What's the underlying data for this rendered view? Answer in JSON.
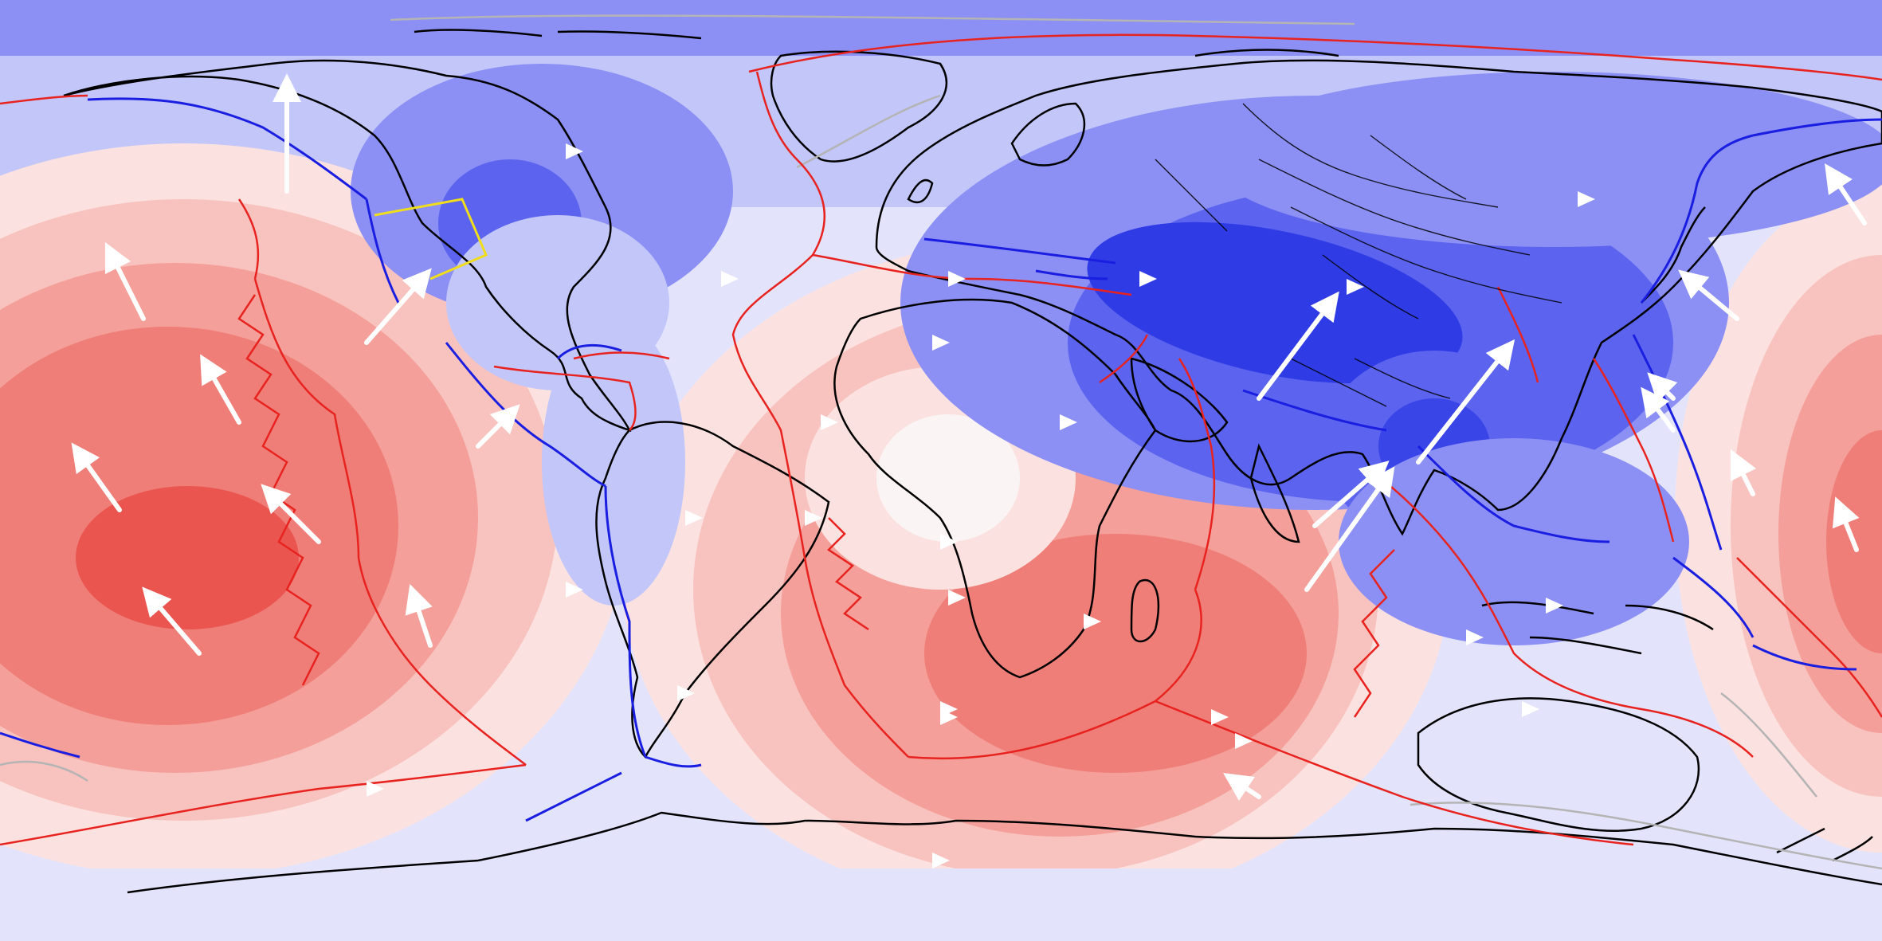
{
  "map": {
    "projection": "equirectangular",
    "colors": {
      "blue_dark": "#2f3ce6",
      "blue_mid": "#5b63ef",
      "blue_light": "#8c90f4",
      "blue_pale": "#c3c6f9",
      "blue_faint": "#e3e4fb",
      "white": "#fbf4f4",
      "red_faint": "#fbe2e0",
      "red_pale": "#f8c3bf",
      "red_light": "#f49f99",
      "red_mid": "#ef7e78",
      "red_dark": "#ea5550",
      "plate_boundary": "#e8231f",
      "subduction": "#1a1ee0",
      "coastline": "#000000",
      "arrow": "#ffffff",
      "yellow_thrust": "#f0dd1c",
      "grey_boundary": "#b4b4b4"
    },
    "layers": [
      "topography-anomaly-field",
      "coastlines",
      "plate-boundaries",
      "subduction-zones",
      "velocity-arrows"
    ]
  }
}
